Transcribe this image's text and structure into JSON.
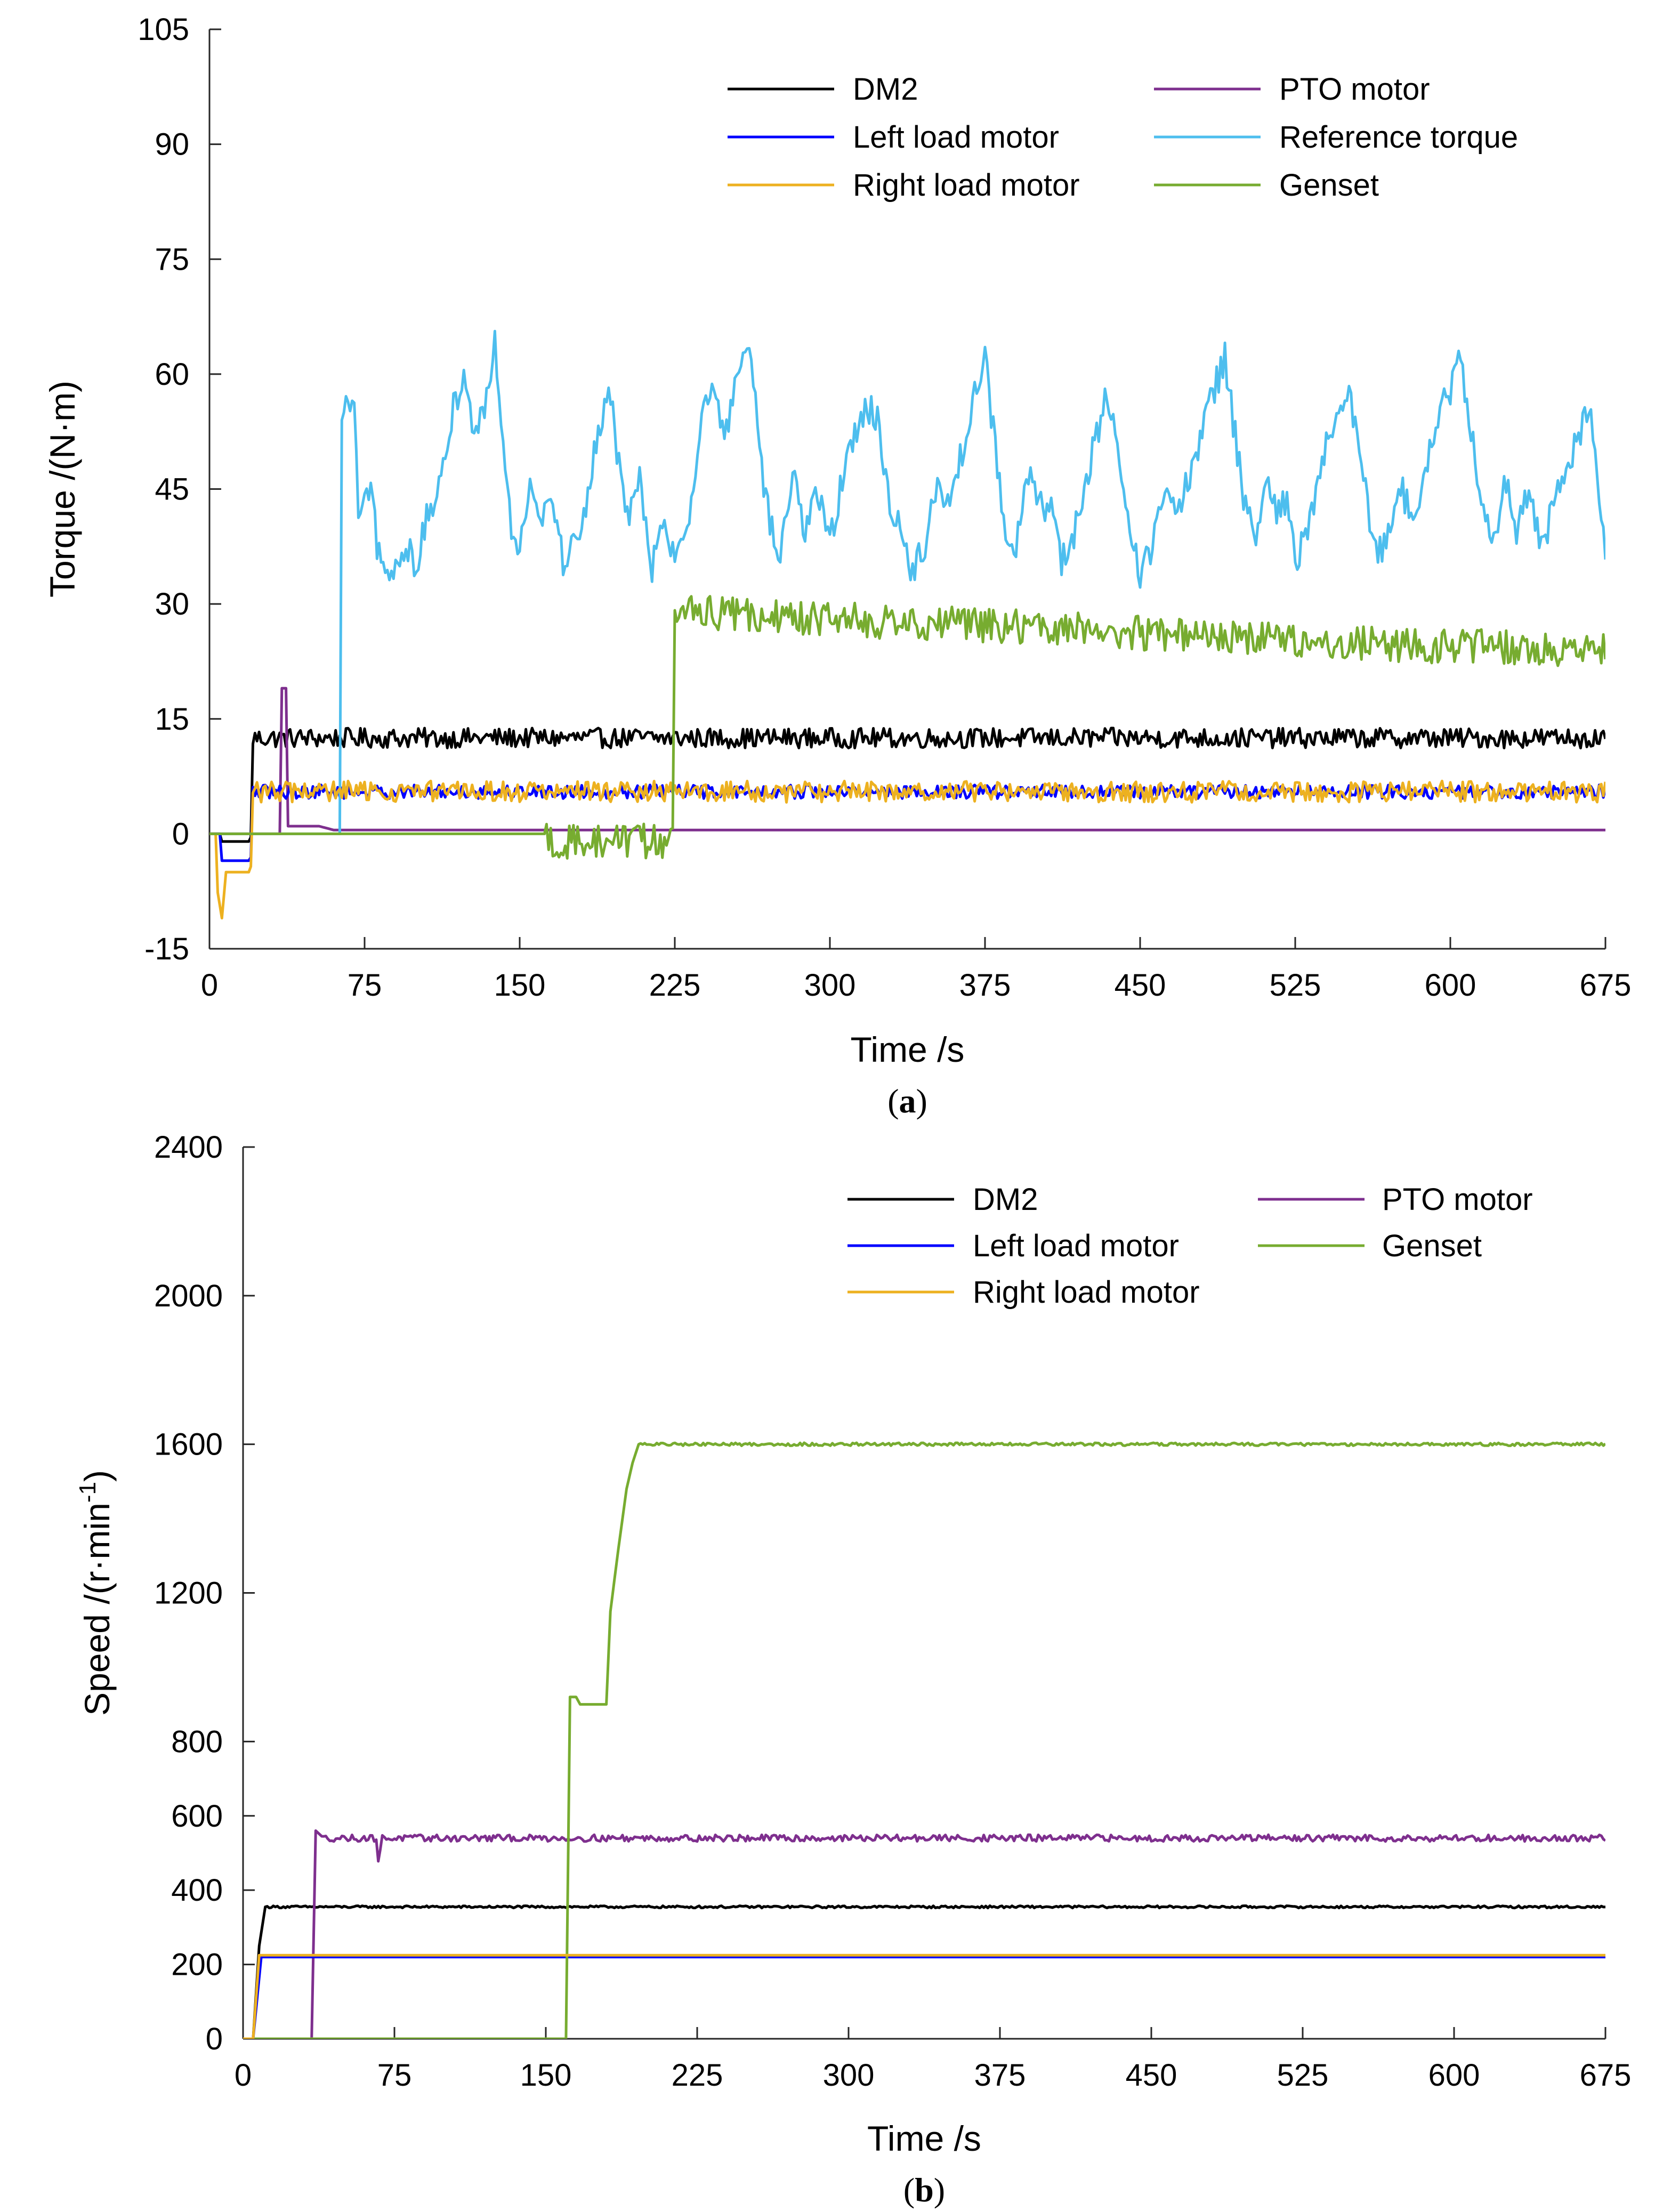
{
  "chart_data": [
    {
      "id": "a",
      "type": "line",
      "caption": "(a)",
      "caption_letter": "a",
      "xlabel": "Time /s",
      "ylabel": "Torque /(N·m)",
      "xlim": [
        0,
        675
      ],
      "ylim": [
        -15,
        105
      ],
      "xticks": [
        0,
        75,
        150,
        225,
        300,
        375,
        450,
        525,
        600,
        675
      ],
      "yticks": [
        -15,
        0,
        15,
        30,
        45,
        60,
        75,
        90,
        105
      ],
      "legend_position": "top-right",
      "legend": [
        "DM2",
        "PTO motor",
        "Left load motor",
        "Reference torque",
        "Right load motor",
        "Genset"
      ],
      "series": [
        {
          "name": "DM2",
          "color": "#000000",
          "points": [
            [
              0,
              0
            ],
            [
              5,
              0
            ],
            [
              5,
              -1
            ],
            [
              20,
              -1
            ],
            [
              20,
              12.5
            ],
            [
              675,
              12.5
            ]
          ],
          "noise": {
            "from": 20,
            "amp": 1.3
          }
        },
        {
          "name": "PTO motor",
          "color": "#7E2F8E",
          "points": [
            [
              0,
              0
            ],
            [
              34,
              0
            ],
            [
              34,
              19
            ],
            [
              37,
              19
            ],
            [
              37,
              1
            ],
            [
              53,
              1
            ],
            [
              60,
              0.5
            ],
            [
              675,
              0.5
            ]
          ]
        },
        {
          "name": "Left load motor",
          "color": "#0000FF",
          "points": [
            [
              0,
              0
            ],
            [
              5,
              0
            ],
            [
              5,
              -3.5
            ],
            [
              20,
              -3.5
            ],
            [
              20,
              5.5
            ],
            [
              675,
              5.5
            ]
          ],
          "noise": {
            "from": 20,
            "amp": 0.9
          }
        },
        {
          "name": "Reference torque",
          "color": "#4DBEEE",
          "points": [
            [
              0,
              0
            ],
            [
              63,
              0
            ],
            [
              63,
              53
            ],
            [
              66,
              56
            ],
            [
              70,
              55
            ],
            [
              72,
              42
            ],
            [
              78,
              44
            ],
            [
              82,
              36
            ],
            [
              88,
              33
            ],
            [
              95,
              38
            ],
            [
              100,
              35
            ],
            [
              106,
              42
            ],
            [
              112,
              45
            ],
            [
              118,
              56
            ],
            [
              123,
              60
            ],
            [
              128,
              52
            ],
            [
              133,
              56
            ],
            [
              138,
              64
            ],
            [
              142,
              52
            ],
            [
              146,
              40
            ],
            [
              150,
              38
            ],
            [
              155,
              46
            ],
            [
              160,
              42
            ],
            [
              166,
              44
            ],
            [
              171,
              35
            ],
            [
              176,
              38
            ],
            [
              182,
              43
            ],
            [
              188,
              52
            ],
            [
              194,
              58
            ],
            [
              198,
              48
            ],
            [
              203,
              41
            ],
            [
              208,
              46
            ],
            [
              214,
              35
            ],
            [
              220,
              40
            ],
            [
              226,
              36
            ],
            [
              232,
              42
            ],
            [
              238,
              55
            ],
            [
              244,
              58
            ],
            [
              250,
              52
            ],
            [
              256,
              60
            ],
            [
              261,
              64
            ],
            [
              266,
              50
            ],
            [
              271,
              40
            ],
            [
              276,
              36
            ],
            [
              282,
              47
            ],
            [
              288,
              40
            ],
            [
              294,
              45
            ],
            [
              300,
              38
            ],
            [
              306,
              46
            ],
            [
              312,
              52
            ],
            [
              318,
              56
            ],
            [
              323,
              54
            ],
            [
              328,
              44
            ],
            [
              334,
              40
            ],
            [
              340,
              34
            ],
            [
              346,
              38
            ],
            [
              352,
              46
            ],
            [
              358,
              42
            ],
            [
              364,
              50
            ],
            [
              370,
              58
            ],
            [
              375,
              62
            ],
            [
              380,
              50
            ],
            [
              385,
              40
            ],
            [
              390,
              37
            ],
            [
              395,
              47
            ],
            [
              401,
              44
            ],
            [
              407,
              42
            ],
            [
              412,
              36
            ],
            [
              417,
              38
            ],
            [
              423,
              45
            ],
            [
              429,
              52
            ],
            [
              434,
              57
            ],
            [
              439,
              50
            ],
            [
              444,
              40
            ],
            [
              450,
              34
            ],
            [
              456,
              38
            ],
            [
              462,
              46
            ],
            [
              468,
              41
            ],
            [
              474,
              47
            ],
            [
              480,
              52
            ],
            [
              486,
              58
            ],
            [
              491,
              62
            ],
            [
              496,
              52
            ],
            [
              501,
              42
            ],
            [
              506,
              38
            ],
            [
              511,
              47
            ],
            [
              516,
              41
            ],
            [
              521,
              44
            ],
            [
              526,
              36
            ],
            [
              532,
              40
            ],
            [
              538,
              48
            ],
            [
              544,
              55
            ],
            [
              550,
              58
            ],
            [
              555,
              52
            ],
            [
              560,
              43
            ],
            [
              565,
              36
            ],
            [
              570,
              40
            ],
            [
              576,
              46
            ],
            [
              582,
              40
            ],
            [
              588,
              48
            ],
            [
              594,
              54
            ],
            [
              600,
              58
            ],
            [
              605,
              62
            ],
            [
              610,
              52
            ],
            [
              615,
              44
            ],
            [
              620,
              37
            ],
            [
              626,
              46
            ],
            [
              632,
              40
            ],
            [
              638,
              44
            ],
            [
              644,
              38
            ],
            [
              650,
              42
            ],
            [
              656,
              48
            ],
            [
              662,
              52
            ],
            [
              668,
              55
            ],
            [
              671,
              46
            ],
            [
              675,
              36
            ]
          ],
          "noise": {
            "from": 66,
            "amp": 2.2
          }
        },
        {
          "name": "Right load motor",
          "color": "#EDB120",
          "points": [
            [
              0,
              0
            ],
            [
              3,
              0
            ],
            [
              3,
              -6
            ],
            [
              6,
              -11
            ],
            [
              8,
              -5
            ],
            [
              20,
              -5
            ],
            [
              20,
              5.5
            ],
            [
              675,
              5.5
            ]
          ],
          "noise": {
            "from": 20,
            "amp": 1.4
          }
        },
        {
          "name": "Genset",
          "color": "#77AC30",
          "points": [
            [
              0,
              0
            ],
            [
              163,
              0
            ],
            [
              163,
              -1
            ],
            [
              224,
              -1
            ],
            [
              224,
              29
            ],
            [
              300,
              28
            ],
            [
              400,
              27
            ],
            [
              500,
              25.5
            ],
            [
              600,
              24.5
            ],
            [
              675,
              24
            ]
          ],
          "noise": {
            "from": 163,
            "amp": 2.3
          }
        }
      ]
    },
    {
      "id": "b",
      "type": "line",
      "caption": "(b)",
      "caption_letter": "b",
      "xlabel": "Time /s",
      "ylabel": "Speed /(r·min",
      "ylabel_sup": "-1",
      "ylabel_end": ")",
      "xlim": [
        0,
        675
      ],
      "ylim": [
        0,
        2400
      ],
      "xticks": [
        0,
        75,
        150,
        225,
        300,
        375,
        450,
        525,
        600,
        675
      ],
      "yticks": [
        0,
        200,
        400,
        600,
        800,
        1200,
        1600,
        2000,
        2400
      ],
      "legend_position": "top-right",
      "legend": [
        "DM2",
        "PTO motor",
        "Left load motor",
        "Genset",
        "Right load motor"
      ],
      "series": [
        {
          "name": "DM2",
          "color": "#000000",
          "points": [
            [
              0,
              0
            ],
            [
              5,
              0
            ],
            [
              8,
              250
            ],
            [
              11,
              355
            ],
            [
              675,
              355
            ]
          ],
          "noise": {
            "from": 12,
            "amp": 3
          }
        },
        {
          "name": "PTO motor",
          "color": "#7E2F8E",
          "points": [
            [
              0,
              0
            ],
            [
              34,
              0
            ],
            [
              36,
              560
            ],
            [
              40,
              540
            ],
            [
              66,
              540
            ],
            [
              67,
              480
            ],
            [
              69,
              540
            ],
            [
              675,
              540
            ]
          ],
          "noise": {
            "from": 40,
            "amp": 9
          }
        },
        {
          "name": "Left load motor",
          "color": "#0000FF",
          "points": [
            [
              0,
              0
            ],
            [
              5,
              0
            ],
            [
              9,
              220
            ],
            [
              675,
              220
            ]
          ]
        },
        {
          "name": "Genset",
          "color": "#77AC30",
          "points": [
            [
              0,
              0
            ],
            [
              160,
              0
            ],
            [
              162,
              920
            ],
            [
              165,
              920
            ],
            [
              167,
              900
            ],
            [
              180,
              900
            ],
            [
              182,
              1150
            ],
            [
              186,
              1320
            ],
            [
              190,
              1480
            ],
            [
              193,
              1550
            ],
            [
              196,
              1600
            ],
            [
              675,
              1600
            ]
          ],
          "noise": {
            "from": 197,
            "amp": 4
          }
        },
        {
          "name": "Right load motor",
          "color": "#EDB120",
          "points": [
            [
              0,
              0
            ],
            [
              5,
              0
            ],
            [
              8,
              225
            ],
            [
              675,
              225
            ]
          ]
        }
      ]
    }
  ]
}
